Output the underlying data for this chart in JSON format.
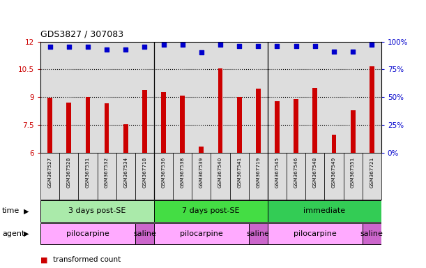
{
  "title": "GDS3827 / 307083",
  "samples": [
    "GSM367527",
    "GSM367528",
    "GSM367531",
    "GSM367532",
    "GSM367534",
    "GSM367718",
    "GSM367536",
    "GSM367538",
    "GSM367539",
    "GSM367540",
    "GSM367541",
    "GSM367719",
    "GSM367545",
    "GSM367546",
    "GSM367548",
    "GSM367549",
    "GSM367551",
    "GSM367721"
  ],
  "transformed_counts": [
    8.98,
    8.72,
    9.02,
    8.68,
    7.55,
    9.38,
    9.28,
    9.07,
    6.32,
    10.56,
    9.02,
    9.47,
    8.78,
    8.88,
    9.48,
    6.97,
    8.28,
    10.66
  ],
  "percentile_ranks": [
    95,
    95,
    95,
    93,
    93,
    95,
    97,
    97,
    90,
    97,
    96,
    96,
    96,
    96,
    96,
    91,
    91,
    97
  ],
  "bar_color": "#cc0000",
  "dot_color": "#0000cc",
  "ylim_left": [
    6,
    12
  ],
  "ylim_right": [
    0,
    100
  ],
  "yticks_left": [
    6,
    7.5,
    9,
    10.5,
    12
  ],
  "ytick_labels_left": [
    "6",
    "7.5",
    "9",
    "10.5",
    "12"
  ],
  "yticks_right": [
    0,
    25,
    50,
    75,
    100
  ],
  "ytick_labels_right": [
    "0%",
    "25%",
    "50%",
    "75%",
    "100%"
  ],
  "time_groups": [
    {
      "label": "3 days post-SE",
      "start": 0,
      "end": 5,
      "color": "#aaeaaa"
    },
    {
      "label": "7 days post-SE",
      "start": 6,
      "end": 11,
      "color": "#44dd44"
    },
    {
      "label": "immediate",
      "start": 12,
      "end": 17,
      "color": "#33cc55"
    }
  ],
  "agent_groups": [
    {
      "label": "pilocarpine",
      "start": 0,
      "end": 4,
      "color": "#ffaaff"
    },
    {
      "label": "saline",
      "start": 5,
      "end": 5,
      "color": "#cc66cc"
    },
    {
      "label": "pilocarpine",
      "start": 6,
      "end": 10,
      "color": "#ffaaff"
    },
    {
      "label": "saline",
      "start": 11,
      "end": 11,
      "color": "#cc66cc"
    },
    {
      "label": "pilocarpine",
      "start": 12,
      "end": 16,
      "color": "#ffaaff"
    },
    {
      "label": "saline",
      "start": 17,
      "end": 17,
      "color": "#cc66cc"
    }
  ],
  "bg_color": "#ffffff",
  "sample_box_color": "#dddddd",
  "bar_width": 0.25,
  "group_sep_color": "#000000"
}
